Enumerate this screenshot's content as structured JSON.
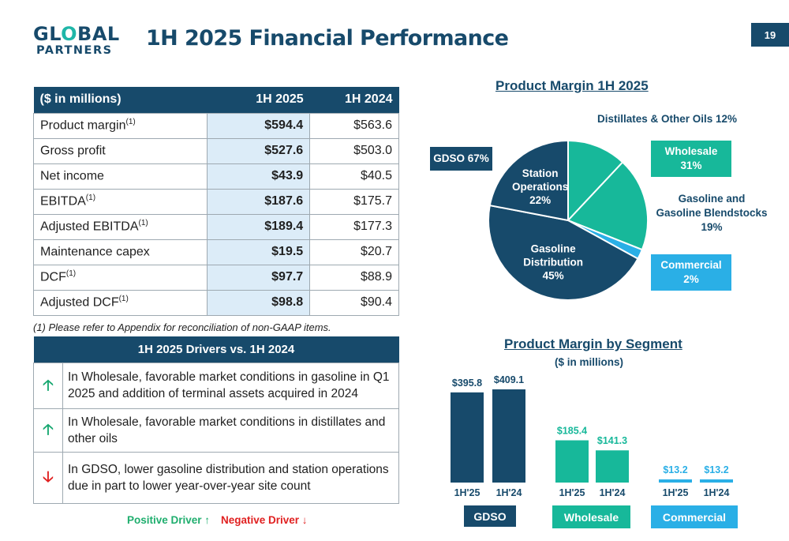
{
  "header": {
    "logo_line1_a": "GL",
    "logo_line1_o": "O",
    "logo_line1_b": "BAL",
    "logo_line2": "PARTNERS",
    "title": "1H 2025 Financial Performance",
    "page_number": "19"
  },
  "financial_table": {
    "columns": [
      "($ in millions)",
      "1H 2025",
      "1H 2024"
    ],
    "rows": [
      {
        "label": "Product margin",
        "sup": "(1)",
        "v2025": "$594.4",
        "v2024": "$563.6"
      },
      {
        "label": "Gross profit",
        "sup": "",
        "v2025": "$527.6",
        "v2024": "$503.0"
      },
      {
        "label": "Net income",
        "sup": "",
        "v2025": "$43.9",
        "v2024": "$40.5"
      },
      {
        "label": "EBITDA",
        "sup": "(1)",
        "v2025": "$187.6",
        "v2024": "$175.7"
      },
      {
        "label": "Adjusted EBITDA",
        "sup": "(1)",
        "v2025": "$189.4",
        "v2024": "$177.3"
      },
      {
        "label": "Maintenance capex",
        "sup": "",
        "v2025": "$19.5",
        "v2024": "$20.7"
      },
      {
        "label": "DCF",
        "sup": "(1)",
        "v2025": "$97.7",
        "v2024": "$88.9"
      },
      {
        "label": "Adjusted DCF",
        "sup": "(1)",
        "v2025": "$98.8",
        "v2024": "$90.4"
      }
    ],
    "footnote": "(1) Please refer to Appendix for reconciliation of non-GAAP items."
  },
  "drivers": {
    "title": "1H 2025 Drivers vs. 1H 2024",
    "items": [
      {
        "direction": "up",
        "arrow": "🡡",
        "text": "In Wholesale, favorable market conditions in gasoline in Q1 2025 and addition of terminal assets acquired in 2024"
      },
      {
        "direction": "up",
        "arrow": "🡡",
        "text": "In Wholesale, favorable market conditions in distillates and other oils"
      },
      {
        "direction": "down",
        "arrow": "🡣",
        "text": "In GDSO, lower gasoline distribution and station operations due in part to lower year-over-year site count"
      }
    ],
    "legend_positive": "Positive Driver ↑",
    "legend_negative": "Negative Driver ↓"
  },
  "colors": {
    "navy": "#174a6b",
    "teal": "#17b89a",
    "light_blue": "#2aafe6",
    "highlight": "#dcecf8"
  },
  "chart_data": [
    {
      "type": "pie",
      "title": "Product Margin 1H 2025",
      "slices": [
        {
          "label": "Distillates & Other Oils 12%",
          "value": 12,
          "color": "#17b89a",
          "inner_label": ""
        },
        {
          "label": "Gasoline and Gasoline Blendstocks 19%",
          "value": 19,
          "color": "#17b89a",
          "inner_label": ""
        },
        {
          "label": "Commercial 2%",
          "value": 2,
          "color": "#2aafe6",
          "inner_label": ""
        },
        {
          "label": "Gasoline Distribution 45%",
          "value": 45,
          "color": "#174a6b",
          "inner_label": "Gasoline|Distribution|45%"
        },
        {
          "label": "Station Operations 22%",
          "value": 22,
          "color": "#174a6b",
          "inner_label": "Station|Operations|22%"
        }
      ],
      "callouts": {
        "distillates": "Distillates & Other Oils 12%",
        "gdso": "GDSO 67%",
        "wholesale_line1": "Wholesale",
        "wholesale_line2": "31%",
        "gasoline_line1": "Gasoline and",
        "gasoline_line2": "Gasoline Blendstocks 19%",
        "commercial_line1": "Commercial",
        "commercial_line2": "2%"
      }
    },
    {
      "type": "bar",
      "title": "Product Margin by Segment",
      "subtitle": "($ in millions)",
      "groups": [
        {
          "name": "GDSO",
          "color": "#174a6b",
          "bars": [
            {
              "period": "1H'25",
              "value": 395.8,
              "label": "$395.8"
            },
            {
              "period": "1H'24",
              "value": 409.1,
              "label": "$409.1"
            }
          ]
        },
        {
          "name": "Wholesale",
          "color": "#17b89a",
          "bars": [
            {
              "period": "1H'25",
              "value": 185.4,
              "label": "$185.4"
            },
            {
              "period": "1H'24",
              "value": 141.3,
              "label": "$141.3"
            }
          ]
        },
        {
          "name": "Commercial",
          "color": "#2aafe6",
          "bars": [
            {
              "period": "1H'25",
              "value": 13.2,
              "label": "$13.2"
            },
            {
              "period": "1H'24",
              "value": 13.2,
              "label": "$13.2"
            }
          ]
        }
      ]
    }
  ]
}
